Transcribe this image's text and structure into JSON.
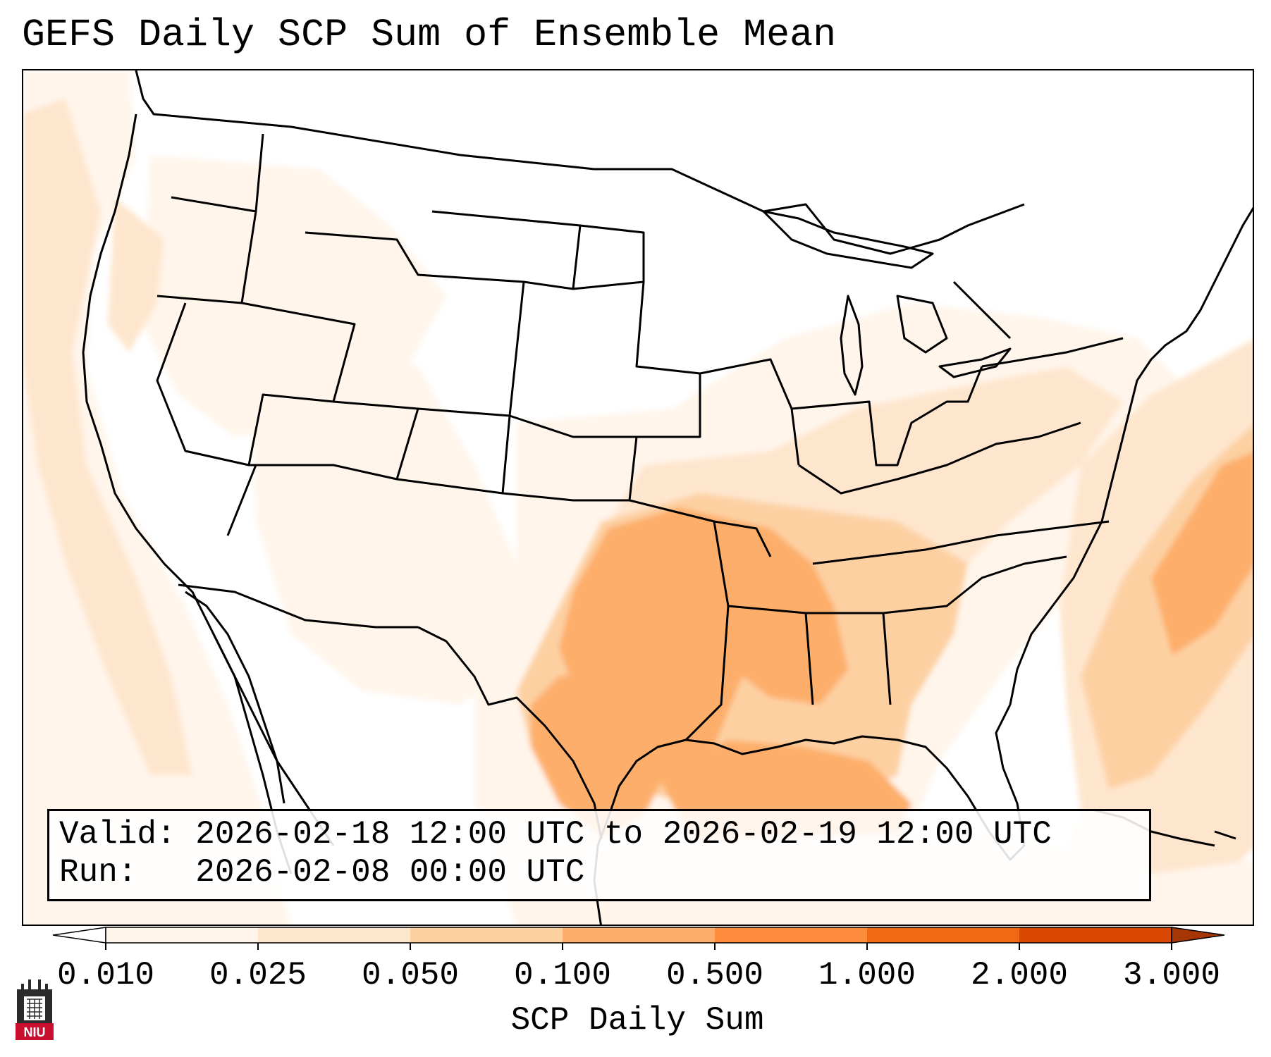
{
  "title": "GEFS Daily SCP Sum of Ensemble Mean",
  "info": {
    "valid_label": "Valid:",
    "valid_value": "2026-02-18 12:00 UTC to 2026-02-19 12:00 UTC",
    "run_label": "Run:",
    "run_value": "2026-02-08 00:00 UTC"
  },
  "colorbar": {
    "label": "SCP Daily Sum",
    "ticks": [
      "0.010",
      "0.025",
      "0.050",
      "0.100",
      "0.500",
      "1.000",
      "2.000",
      "3.000"
    ],
    "colors": [
      "#fff5eb",
      "#fee6ce",
      "#fdd0a2",
      "#fdae6b",
      "#fd8d3c",
      "#f16913",
      "#d94801",
      "#a63603"
    ],
    "extend": "both"
  },
  "shading": {
    "very_light": "#fff5eb",
    "light": "#fee6ce",
    "medium_light": "#fdd0a2",
    "medium": "#fdae6b",
    "strong": "#fd8d3c"
  },
  "logo": {
    "text": "NIU",
    "color": "#c8102e"
  }
}
